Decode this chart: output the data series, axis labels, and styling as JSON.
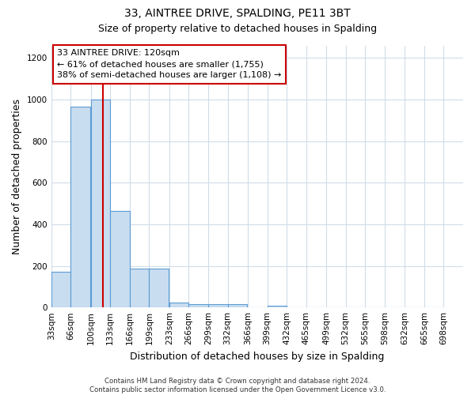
{
  "title": "33, AINTREE DRIVE, SPALDING, PE11 3BT",
  "subtitle": "Size of property relative to detached houses in Spalding",
  "xlabel": "Distribution of detached houses by size in Spalding",
  "ylabel": "Number of detached properties",
  "bin_labels": [
    "33sqm",
    "66sqm",
    "100sqm",
    "133sqm",
    "166sqm",
    "199sqm",
    "233sqm",
    "266sqm",
    "299sqm",
    "332sqm",
    "366sqm",
    "399sqm",
    "432sqm",
    "465sqm",
    "499sqm",
    "532sqm",
    "565sqm",
    "598sqm",
    "632sqm",
    "665sqm",
    "698sqm"
  ],
  "bin_edges": [
    33,
    66,
    100,
    133,
    166,
    199,
    233,
    266,
    299,
    332,
    366,
    399,
    432,
    465,
    499,
    532,
    565,
    598,
    632,
    665,
    698
  ],
  "bar_heights": [
    170,
    965,
    1000,
    465,
    185,
    185,
    25,
    15,
    15,
    15,
    0,
    10,
    0,
    0,
    0,
    0,
    0,
    0,
    0,
    0
  ],
  "bar_color": "#c9ddf0",
  "bar_edge_color": "#5b9bd5",
  "property_size": 120,
  "vline_color": "#cc0000",
  "annotation_line1": "33 AINTREE DRIVE: 120sqm",
  "annotation_line2": "← 61% of detached houses are smaller (1,755)",
  "annotation_line3": "38% of semi-detached houses are larger (1,108) →",
  "annotation_box_color": "#ffffff",
  "annotation_box_edge": "#cc0000",
  "ylim": [
    0,
    1260
  ],
  "yticks": [
    0,
    200,
    400,
    600,
    800,
    1000,
    1200
  ],
  "footer_text": "Contains HM Land Registry data © Crown copyright and database right 2024.\nContains public sector information licensed under the Open Government Licence v3.0.",
  "bg_color": "#ffffff",
  "grid_color": "#d0dce8",
  "title_fontsize": 10,
  "subtitle_fontsize": 9,
  "axis_label_fontsize": 9,
  "tick_fontsize": 7.5
}
